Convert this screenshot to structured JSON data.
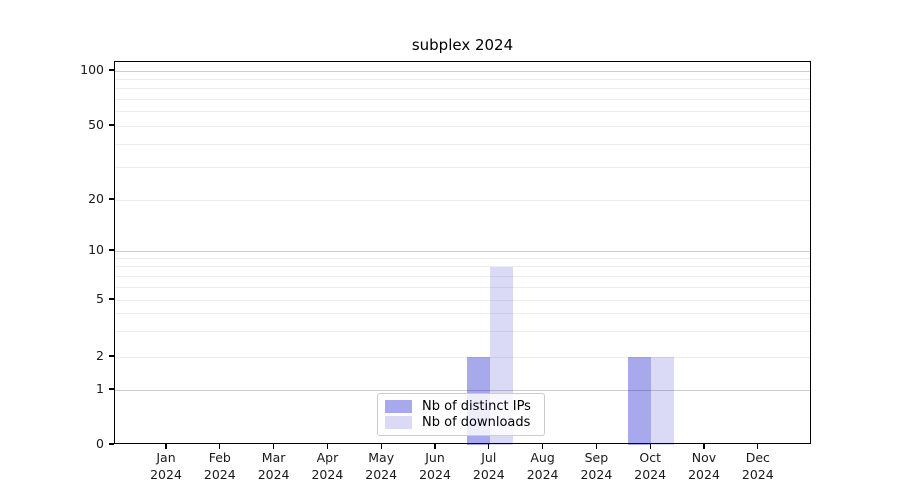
{
  "chart_data": {
    "type": "bar",
    "title": "subplex 2024",
    "xlabel": "",
    "ylabel": "",
    "x_tick_months": [
      "Jan",
      "Feb",
      "Mar",
      "Apr",
      "May",
      "Jun",
      "Jul",
      "Aug",
      "Sep",
      "Oct",
      "Nov",
      "Dec"
    ],
    "x_tick_year": "2024",
    "y_ticks": [
      0,
      1,
      2,
      5,
      10,
      20,
      50,
      100
    ],
    "y_scale": "symlog",
    "ylim": [
      0,
      115
    ],
    "grid": "horizontal major and log-minor gridlines",
    "legend_position": "inside bottom-center",
    "series": [
      {
        "name": "Nb of distinct IPs",
        "color": "rgba(0,0,200,0.34)",
        "values": [
          0,
          0,
          0,
          0,
          0,
          0,
          2,
          0,
          0,
          2,
          0,
          0
        ]
      },
      {
        "name": "Nb of downloads",
        "color": "rgba(0,0,200,0.145)",
        "values": [
          0,
          0,
          0,
          0,
          0,
          0,
          8,
          0,
          0,
          2,
          0,
          0
        ]
      }
    ]
  },
  "colors": {
    "major_grid": "#cccccc",
    "minor_grid": "#ededed",
    "axis": "#000000",
    "tick_text": "#1a1a1a",
    "legend_border": "#cccccc"
  }
}
